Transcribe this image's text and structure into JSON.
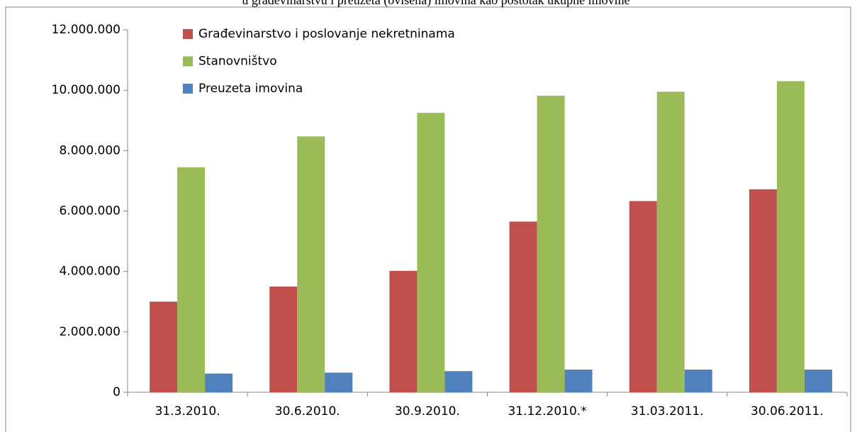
{
  "chart_data": {
    "type": "bar",
    "title": "u građevinarstvu i preuzeta (ovisena) imovina kao postotak ukupne imovine",
    "categories": [
      "31.3.2010.",
      "30.6.2010.",
      "30.9.2010.",
      "31.12.2010.*",
      "31.03.2011.",
      "30.06.2011."
    ],
    "series": [
      {
        "name": "Građevinarstvo i poslovanje nekretninama",
        "color": "#c0504d",
        "values": [
          3000000,
          3500000,
          4020000,
          5650000,
          6330000,
          6720000
        ]
      },
      {
        "name": "Stanovništvo",
        "color": "#9bbb59",
        "values": [
          7450000,
          8470000,
          9250000,
          9820000,
          9950000,
          10300000
        ]
      },
      {
        "name": "Preuzeta imovina",
        "color": "#4f81bd",
        "values": [
          620000,
          650000,
          700000,
          750000,
          750000,
          750000
        ]
      }
    ],
    "ylim": [
      0,
      12000000
    ],
    "yticks": [
      0,
      {
        "value": 2000000,
        "label": "2.000.000"
      },
      {
        "value": 4000000,
        "label": "4.000.000"
      },
      {
        "value": 6000000,
        "label": "6.000.000"
      },
      {
        "value": 8000000,
        "label": "8.000.000"
      },
      {
        "value": 10000000,
        "label": "10.000.000"
      },
      {
        "value": 12000000,
        "label": "12.000.000"
      }
    ],
    "grid": false,
    "legend": "top-left"
  }
}
